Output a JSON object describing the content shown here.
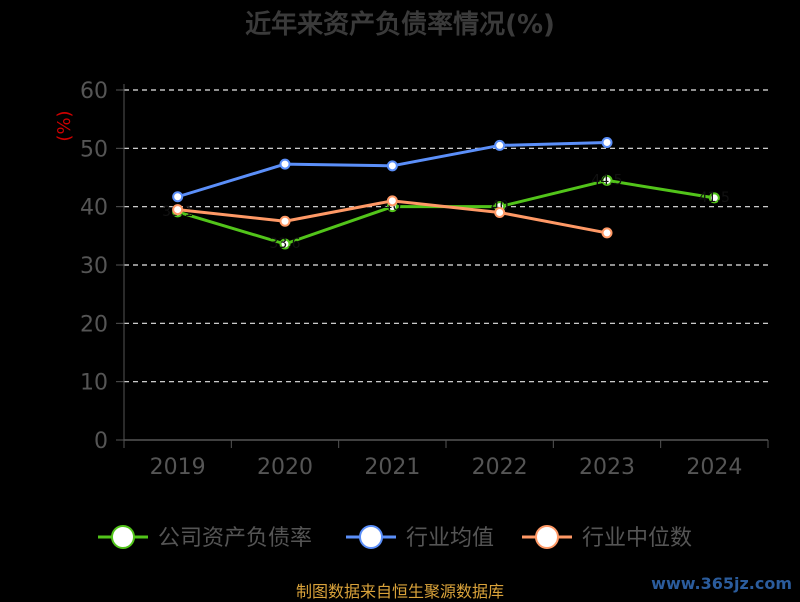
{
  "chart_data": {
    "type": "line",
    "title": "近年来资产负债率情况(%)",
    "ylabel": "(%)",
    "xlabel": "",
    "categories": [
      "2019",
      "2020",
      "2021",
      "2022",
      "2023",
      "2024"
    ],
    "ylim": [
      0,
      60
    ],
    "yticks": [
      0,
      10,
      20,
      30,
      40,
      50,
      60
    ],
    "grid": true,
    "legend_position": "bottom",
    "series": [
      {
        "name": "公司资产负债率",
        "color": "#52c41a",
        "values": [
          39.1,
          33.6,
          40.0,
          40.0,
          44.5,
          41.5
        ]
      },
      {
        "name": "行业均值",
        "color": "#5b8ff9",
        "values": [
          41.7,
          47.3,
          47.0,
          50.5,
          51.0,
          null
        ]
      },
      {
        "name": "行业中位数",
        "color": "#ff9966",
        "values": [
          39.5,
          37.5,
          41.0,
          39.0,
          35.5,
          null
        ]
      }
    ]
  },
  "footer": {
    "source": "制图数据来自恒生聚源数据库",
    "watermark": "www.365jz.com"
  }
}
